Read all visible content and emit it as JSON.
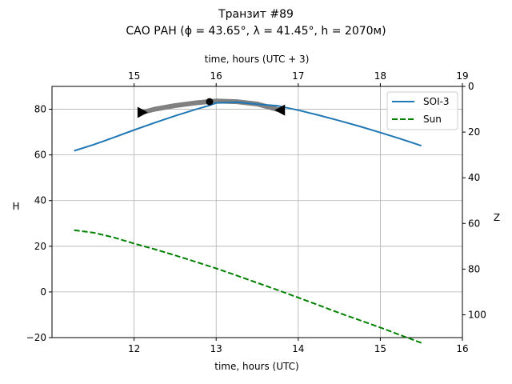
{
  "chart_data": {
    "type": "line",
    "title_line1": "Транзит #89",
    "title_line2": "САО РАН (ϕ = 43.65°, λ = 41.45°, h = 2070м)",
    "xlabel_bottom": "time, hours (UTC)",
    "xlabel_top": "time, hours (UTC + 3)",
    "ylabel_left": "H",
    "ylabel_right": "Z",
    "xlim": [
      11.0,
      16.0
    ],
    "ylim": [
      -20,
      90
    ],
    "x_ticks": [
      12,
      13,
      14,
      15,
      16
    ],
    "y_ticks": [
      -20,
      0,
      20,
      40,
      60,
      80
    ],
    "top_ticks": [
      15,
      16,
      17,
      18,
      19
    ],
    "top_offset_hours": 3,
    "right_ticks": [
      0,
      20,
      40,
      60,
      80,
      100
    ],
    "grid": true,
    "legend_position": "top-right",
    "series": [
      {
        "name": "SOI-3",
        "color": "#1f77b4",
        "style": "solid",
        "x": [
          11.27,
          11.5,
          11.75,
          12.0,
          12.25,
          12.5,
          12.75,
          12.9,
          13.0,
          13.25,
          13.5,
          13.75,
          14.0,
          14.25,
          14.5,
          14.75,
          15.0,
          15.25,
          15.5
        ],
        "y": [
          61.8,
          64.4,
          67.6,
          70.9,
          74.1,
          77.1,
          79.9,
          81.5,
          82.7,
          83.1,
          82.2,
          81.5,
          79.6,
          77.4,
          75.0,
          72.5,
          69.8,
          67.0,
          64.0
        ]
      },
      {
        "name": "Sun",
        "color": "#008000",
        "style": "dashed",
        "x": [
          11.27,
          11.5,
          11.75,
          12.0,
          12.25,
          12.5,
          12.75,
          13.0,
          13.25,
          13.5,
          13.75,
          14.0,
          14.25,
          14.5,
          14.75,
          15.0,
          15.25,
          15.5
        ],
        "y": [
          27.0,
          26.0,
          23.9,
          21.2,
          18.7,
          16.0,
          13.2,
          10.3,
          7.2,
          4.0,
          0.8,
          -2.5,
          -5.8,
          -9.2,
          -12.4,
          -15.6,
          -19.0,
          -22.3
        ]
      }
    ],
    "transit_band": {
      "name": "visibility",
      "color": "#808080",
      "x": [
        12.1,
        12.25,
        12.5,
        12.75,
        12.9,
        13.0,
        13.25,
        13.5,
        13.78
      ],
      "y": [
        78.6,
        80.0,
        81.6,
        82.8,
        83.3,
        83.6,
        83.3,
        82.3,
        79.6
      ]
    },
    "markers": [
      {
        "name": "transit-start-marker",
        "shape": "triangle-right",
        "x": 12.1,
        "y": 78.6
      },
      {
        "name": "culmination-point",
        "shape": "circle",
        "x": 12.92,
        "y": 83.3
      },
      {
        "name": "transit-end-marker",
        "shape": "triangle-left",
        "x": 13.78,
        "y": 79.6
      }
    ]
  }
}
